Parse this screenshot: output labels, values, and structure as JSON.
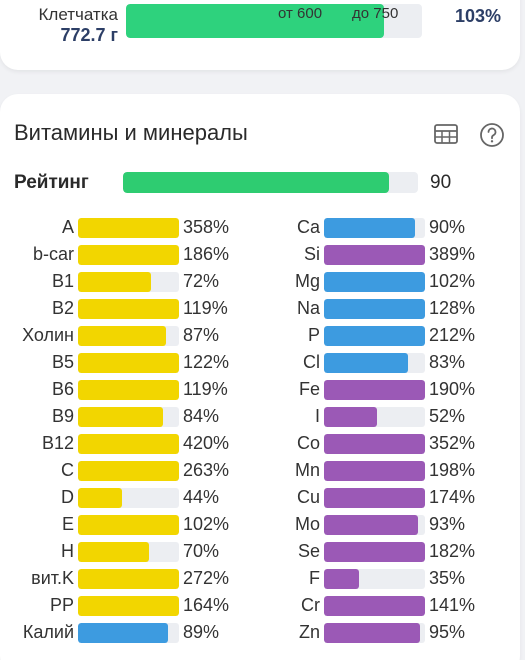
{
  "fiber": {
    "label": "Клетчатка",
    "value": "772.7 г",
    "min_label": "от 600",
    "max_label": "до 750",
    "percent": "103%",
    "fill_fraction": 0.87,
    "color": "#2ed27d"
  },
  "vitamins": {
    "title": "Витамины и минералы",
    "table_icon": "table-icon",
    "help_icon": "help-icon",
    "rating": {
      "label": "Рейтинг",
      "value": "90",
      "fill_fraction": 0.9,
      "color": "#2ecc71"
    },
    "colors": {
      "vitamin": "#f2d600",
      "mineral_blue": "#3d9be0",
      "mineral_purple": "#9b59b6"
    },
    "left": [
      {
        "label": "A",
        "percent": "358%",
        "fill": 1.0,
        "color": "vitamin"
      },
      {
        "label": "b-car",
        "percent": "186%",
        "fill": 1.0,
        "color": "vitamin"
      },
      {
        "label": "B1",
        "percent": "72%",
        "fill": 0.72,
        "color": "vitamin"
      },
      {
        "label": "B2",
        "percent": "119%",
        "fill": 1.0,
        "color": "vitamin"
      },
      {
        "label": "Холин",
        "percent": "87%",
        "fill": 0.87,
        "color": "vitamin"
      },
      {
        "label": "B5",
        "percent": "122%",
        "fill": 1.0,
        "color": "vitamin"
      },
      {
        "label": "B6",
        "percent": "119%",
        "fill": 1.0,
        "color": "vitamin"
      },
      {
        "label": "B9",
        "percent": "84%",
        "fill": 0.84,
        "color": "vitamin"
      },
      {
        "label": "B12",
        "percent": "420%",
        "fill": 1.0,
        "color": "vitamin"
      },
      {
        "label": "C",
        "percent": "263%",
        "fill": 1.0,
        "color": "vitamin"
      },
      {
        "label": "D",
        "percent": "44%",
        "fill": 0.44,
        "color": "vitamin"
      },
      {
        "label": "E",
        "percent": "102%",
        "fill": 1.0,
        "color": "vitamin"
      },
      {
        "label": "H",
        "percent": "70%",
        "fill": 0.7,
        "color": "vitamin"
      },
      {
        "label": "вит.K",
        "percent": "272%",
        "fill": 1.0,
        "color": "vitamin"
      },
      {
        "label": "PP",
        "percent": "164%",
        "fill": 1.0,
        "color": "vitamin"
      },
      {
        "label": "Калий",
        "percent": "89%",
        "fill": 0.89,
        "color": "mineral_blue"
      }
    ],
    "right": [
      {
        "label": "Ca",
        "percent": "90%",
        "fill": 0.9,
        "color": "mineral_blue"
      },
      {
        "label": "Si",
        "percent": "389%",
        "fill": 1.0,
        "color": "mineral_purple"
      },
      {
        "label": "Mg",
        "percent": "102%",
        "fill": 1.0,
        "color": "mineral_blue"
      },
      {
        "label": "Na",
        "percent": "128%",
        "fill": 1.0,
        "color": "mineral_blue"
      },
      {
        "label": "P",
        "percent": "212%",
        "fill": 1.0,
        "color": "mineral_blue"
      },
      {
        "label": "Cl",
        "percent": "83%",
        "fill": 0.83,
        "color": "mineral_blue"
      },
      {
        "label": "Fe",
        "percent": "190%",
        "fill": 1.0,
        "color": "mineral_purple"
      },
      {
        "label": "I",
        "percent": "52%",
        "fill": 0.52,
        "color": "mineral_purple"
      },
      {
        "label": "Co",
        "percent": "352%",
        "fill": 1.0,
        "color": "mineral_purple"
      },
      {
        "label": "Mn",
        "percent": "198%",
        "fill": 1.0,
        "color": "mineral_purple"
      },
      {
        "label": "Cu",
        "percent": "174%",
        "fill": 1.0,
        "color": "mineral_purple"
      },
      {
        "label": "Mo",
        "percent": "93%",
        "fill": 0.93,
        "color": "mineral_purple"
      },
      {
        "label": "Se",
        "percent": "182%",
        "fill": 1.0,
        "color": "mineral_purple"
      },
      {
        "label": "F",
        "percent": "35%",
        "fill": 0.35,
        "color": "mineral_purple"
      },
      {
        "label": "Cr",
        "percent": "141%",
        "fill": 1.0,
        "color": "mineral_purple"
      },
      {
        "label": "Zn",
        "percent": "95%",
        "fill": 0.95,
        "color": "mineral_purple"
      }
    ]
  }
}
